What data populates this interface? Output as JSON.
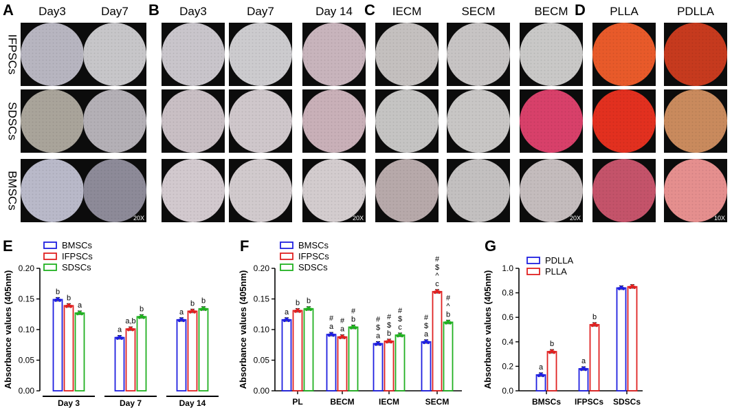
{
  "panel_labels": [
    "A",
    "B",
    "C",
    "D",
    "E",
    "F",
    "G"
  ],
  "micro": {
    "groups": [
      {
        "label": "A",
        "columns": [
          "Day3",
          "Day7"
        ],
        "magnification": "20X"
      },
      {
        "label": "B",
        "columns": [
          "Day3",
          "Day7",
          "Day 14"
        ],
        "magnification": "20X"
      },
      {
        "label": "C",
        "columns": [
          "IECM",
          "SECM",
          "BECM"
        ],
        "magnification": "20X"
      },
      {
        "label": "D",
        "columns": [
          "PLLA",
          "PDLLA"
        ],
        "magnification": "10X"
      }
    ],
    "row_labels": [
      "IFPSCs",
      "SDSCs",
      "BMSCs"
    ],
    "colors": {
      "A": [
        "#b7b5c0",
        "#c7c6c9",
        "#a9a49a",
        "#b4b0b6",
        "#b9b9c9",
        "#8d8a98"
      ],
      "B": [
        "#c9c5cb",
        "#cccbce",
        "#c8b4bc",
        "#c9bfc4",
        "#cfc7cb",
        "#c9b0b8",
        "#d2c9ce",
        "#d1cacd",
        "#d3ccce"
      ],
      "C": [
        "#c4c0bf",
        "#c7c4c4",
        "#c9c8c7",
        "#c5c4c3",
        "#c8c6c5",
        "#d8406a",
        "#b7a9aa",
        "#c3c0c0",
        "#c4bcbd"
      ],
      "D": [
        "#e85a2a",
        "#c63a1e",
        "#e2301f",
        "#c98a5d",
        "#c4536a",
        "#e58f8e"
      ]
    }
  },
  "chart_data": [
    {
      "panel": "E",
      "type": "bar",
      "ylabel": "Absorbance values (405nm)",
      "ylim": [
        0,
        0.2
      ],
      "yticks": [
        "0.00",
        "0.05",
        "0.10",
        "0.15",
        "0.20"
      ],
      "categories": [
        "Day 3",
        "Day 7",
        "Day 14"
      ],
      "series": [
        {
          "name": "BMSCs",
          "color": "#1f1fe0",
          "values": [
            0.149,
            0.087,
            0.116
          ],
          "labels": [
            "b",
            "a",
            "a"
          ]
        },
        {
          "name": "IFPSCs",
          "color": "#e02020",
          "values": [
            0.139,
            0.101,
            0.13
          ],
          "labels": [
            "b",
            "a,b",
            "b"
          ]
        },
        {
          "name": "SDSCs",
          "color": "#20b020",
          "values": [
            0.127,
            0.121,
            0.134
          ],
          "labels": [
            "a",
            "b",
            "b"
          ]
        }
      ]
    },
    {
      "panel": "F",
      "type": "bar",
      "ylabel": "Absorbance values (405nm)",
      "ylim": [
        0,
        0.2
      ],
      "yticks": [
        "0.00",
        "0.05",
        "0.10",
        "0.15",
        "0.20"
      ],
      "categories": [
        "PL",
        "BECM",
        "IECM",
        "SECM"
      ],
      "series": [
        {
          "name": "BMSCs",
          "color": "#1f1fe0",
          "values": [
            0.116,
            0.092,
            0.077,
            0.08
          ],
          "labels": [
            "a",
            "#\na",
            "#\n$\na",
            "#\n$\na"
          ]
        },
        {
          "name": "IFPSCs",
          "color": "#e02020",
          "values": [
            0.131,
            0.088,
            0.081,
            0.162
          ],
          "labels": [
            "b",
            "#\na",
            "#\n$\nb",
            "#\n$\n^\nc"
          ]
        },
        {
          "name": "SDSCs",
          "color": "#20b020",
          "values": [
            0.134,
            0.104,
            0.091,
            0.112
          ],
          "labels": [
            "b",
            "#\nb",
            "#\n$\nc",
            "#\n^\nb"
          ]
        }
      ]
    },
    {
      "panel": "G",
      "type": "bar",
      "ylabel": "Absorbance values (405nm)",
      "ylim": [
        0,
        1.0
      ],
      "yticks": [
        "0.0",
        "0.2",
        "0.4",
        "0.6",
        "0.8",
        "1.0"
      ],
      "categories": [
        "BMSCs",
        "IFPSCs",
        "SDSCs"
      ],
      "series": [
        {
          "name": "PDLLA",
          "color": "#1f1fe0",
          "values": [
            0.13,
            0.18,
            0.84
          ],
          "labels": [
            "a",
            "a",
            ""
          ]
        },
        {
          "name": "PLLA",
          "color": "#e02020",
          "values": [
            0.32,
            0.54,
            0.85
          ],
          "labels": [
            "b",
            "b",
            ""
          ]
        }
      ]
    }
  ]
}
